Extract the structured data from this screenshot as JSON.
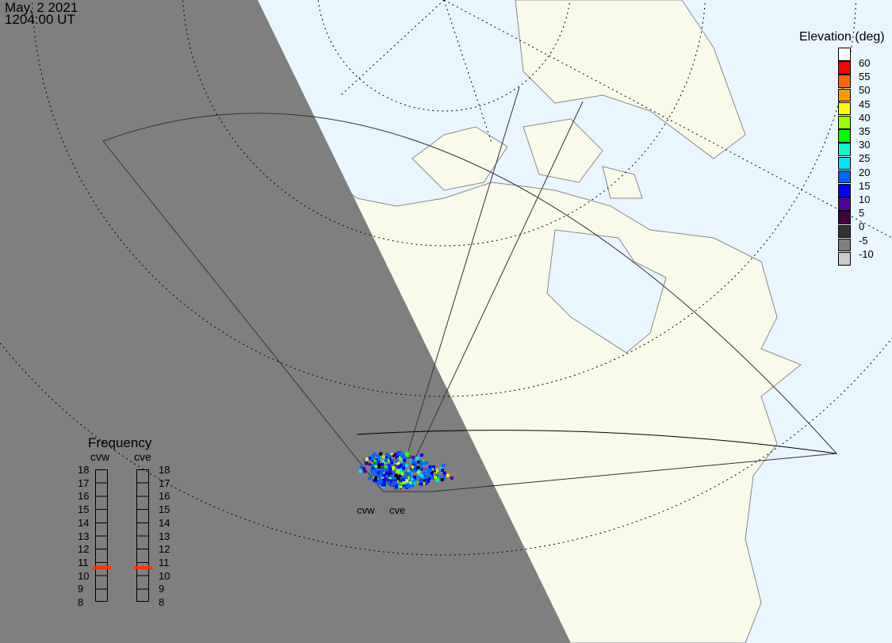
{
  "timestamp": {
    "date": "May, 2 2021",
    "time": "1204:00 UT"
  },
  "colors": {
    "ocean": "#eaf6fd",
    "land": "#fafaeb",
    "night": "#7f7f7f",
    "night_land_border": "#a9a9a9",
    "frequency_marker": "#ff3300"
  },
  "elevation_legend": {
    "title": "Elevation (deg)",
    "colors": [
      "#ffffff",
      "#ff0000",
      "#ff6600",
      "#ff9900",
      "#ffff00",
      "#99ff00",
      "#00ff00",
      "#00ffcc",
      "#00e5ff",
      "#0066ff",
      "#0000ff",
      "#550099",
      "#440044",
      "#333333",
      "#808080",
      "#cccccc"
    ],
    "labels": [
      "60",
      "55",
      "50",
      "45",
      "40",
      "35",
      "30",
      "25",
      "20",
      "15",
      "10",
      "5",
      "0",
      "-5",
      "-10"
    ]
  },
  "frequency_panel": {
    "title": "Frequency",
    "radars": [
      {
        "name": "cvw",
        "frequency_mhz": 10.6
      },
      {
        "name": "cve",
        "frequency_mhz": 10.6
      }
    ],
    "ticks": [
      "18",
      "17",
      "16",
      "15",
      "14",
      "13",
      "12",
      "11",
      "10",
      "9",
      "8"
    ],
    "range_mhz": [
      8,
      18
    ]
  },
  "radar_labels": [
    "cvw",
    "cve"
  ]
}
